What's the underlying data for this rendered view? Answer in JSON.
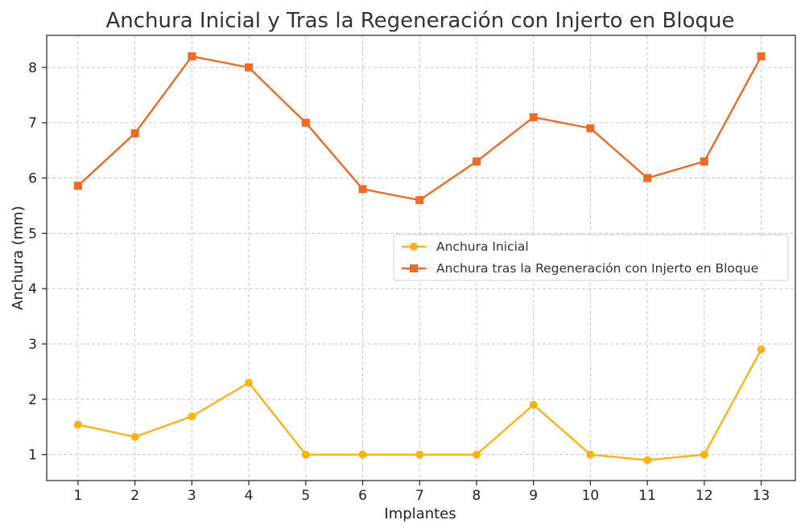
{
  "chart_data": {
    "type": "line",
    "title": "Anchura Inicial y Tras la Regeneración con Injerto en Bloque",
    "xlabel": "Implantes",
    "ylabel": "Anchura (mm)",
    "x": [
      1,
      2,
      3,
      4,
      5,
      6,
      7,
      8,
      9,
      10,
      11,
      12,
      13
    ],
    "xticks": [
      "1",
      "2",
      "3",
      "4",
      "5",
      "6",
      "7",
      "8",
      "9",
      "10",
      "11",
      "12",
      "13"
    ],
    "yticks": [
      "1",
      "2",
      "3",
      "4",
      "5",
      "6",
      "7",
      "8"
    ],
    "xlim": [
      0.45,
      13.6
    ],
    "ylim": [
      0.53,
      8.58
    ],
    "grid": true,
    "legend_position": "center-right",
    "series": [
      {
        "name": "Anchura Inicial",
        "color": "#fbb316",
        "marker": "circle",
        "values": [
          1.54,
          1.32,
          1.69,
          2.3,
          1.0,
          1.0,
          1.0,
          1.0,
          1.9,
          1.0,
          0.9,
          1.0,
          2.9
        ]
      },
      {
        "name": "Anchura tras la Regeneración con Injerto en Bloque",
        "color": "#ed6b28",
        "marker": "square",
        "values": [
          5.86,
          6.81,
          8.2,
          8.0,
          7.0,
          5.8,
          5.6,
          6.3,
          7.1,
          6.9,
          6.0,
          6.3,
          8.2
        ]
      }
    ]
  }
}
